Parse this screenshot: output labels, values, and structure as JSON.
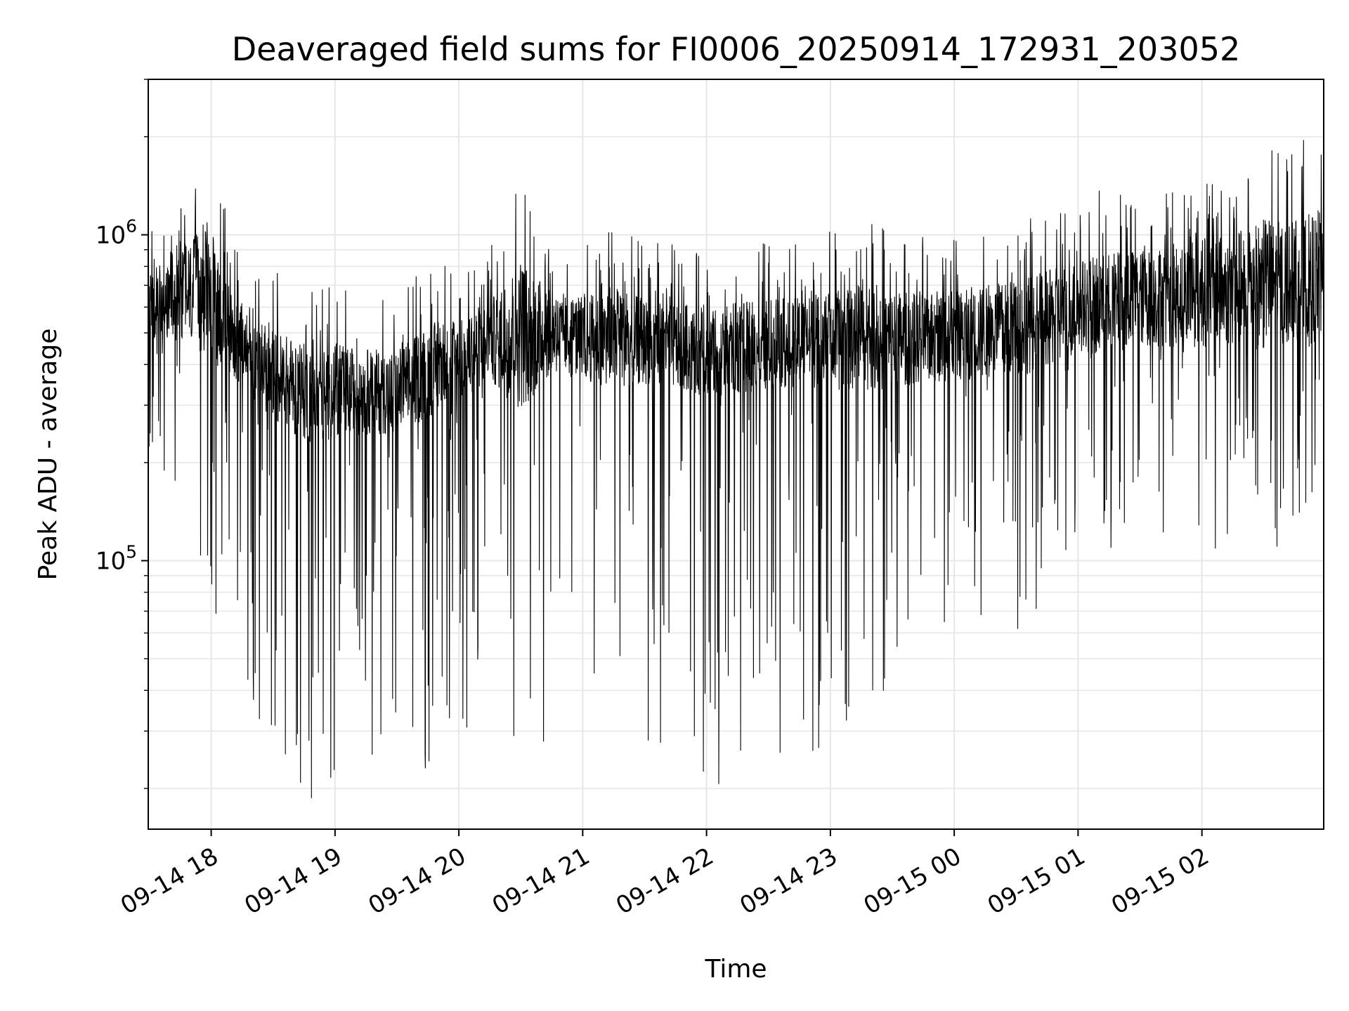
{
  "chart_data": {
    "type": "line",
    "title": "Deaveraged field sums for FI0006_20250914_172931_203052",
    "xlabel": "Time",
    "ylabel": "Peak ADU - average",
    "yscale": "log",
    "ylim": [
      15000,
      3000000
    ],
    "xlim": [
      "2025-09-14 17:29:31",
      "2025-09-15 02:59:00"
    ],
    "grid": true,
    "line_color": "#000000",
    "grid_color": "#e6e6e6",
    "x_ticks": [
      {
        "t": "2025-09-14 18:00",
        "label": "09-14 18"
      },
      {
        "t": "2025-09-14 19:00",
        "label": "09-14 19"
      },
      {
        "t": "2025-09-14 20:00",
        "label": "09-14 20"
      },
      {
        "t": "2025-09-14 21:00",
        "label": "09-14 21"
      },
      {
        "t": "2025-09-14 22:00",
        "label": "09-14 22"
      },
      {
        "t": "2025-09-14 23:00",
        "label": "09-14 23"
      },
      {
        "t": "2025-09-15 00:00",
        "label": "09-15 00"
      },
      {
        "t": "2025-09-15 01:00",
        "label": "09-15 01"
      },
      {
        "t": "2025-09-15 02:00",
        "label": "09-15 02"
      }
    ],
    "y_major_ticks": [
      {
        "value": 100000,
        "base": "10",
        "exp": "5"
      },
      {
        "value": 1000000,
        "base": "10",
        "exp": "6"
      }
    ],
    "series": [
      {
        "envelope": [
          {
            "x": "2025-09-14 17:30",
            "max": 1000000,
            "median": 600000,
            "min": 200000
          },
          {
            "x": "2025-09-14 17:45",
            "max": 1500000,
            "median": 680000,
            "min": 150000
          },
          {
            "x": "2025-09-14 18:00",
            "max": 1900000,
            "median": 650000,
            "min": 60000
          },
          {
            "x": "2025-09-14 18:10",
            "max": 1000000,
            "median": 500000,
            "min": 60000
          },
          {
            "x": "2025-09-14 18:20",
            "max": 800000,
            "median": 420000,
            "min": 32000
          },
          {
            "x": "2025-09-14 18:35",
            "max": 780000,
            "median": 350000,
            "min": 25000
          },
          {
            "x": "2025-09-14 18:50",
            "max": 700000,
            "median": 320000,
            "min": 17000
          },
          {
            "x": "2025-09-14 19:00",
            "max": 700000,
            "median": 330000,
            "min": 20000
          },
          {
            "x": "2025-09-14 19:15",
            "max": 660000,
            "median": 330000,
            "min": 22000
          },
          {
            "x": "2025-09-14 19:30",
            "max": 650000,
            "median": 330000,
            "min": 22000
          },
          {
            "x": "2025-09-14 19:45",
            "max": 820000,
            "median": 380000,
            "min": 20000
          },
          {
            "x": "2025-09-14 20:00",
            "max": 850000,
            "median": 420000,
            "min": 22000
          },
          {
            "x": "2025-09-14 20:15",
            "max": 900000,
            "median": 470000,
            "min": 25000
          },
          {
            "x": "2025-09-14 20:30",
            "max": 1750000,
            "median": 500000,
            "min": 22000
          },
          {
            "x": "2025-09-14 20:45",
            "max": 950000,
            "median": 500000,
            "min": 25000
          },
          {
            "x": "2025-09-14 21:00",
            "max": 960000,
            "median": 480000,
            "min": 28000
          },
          {
            "x": "2025-09-14 21:15",
            "max": 1050000,
            "median": 480000,
            "min": 28000
          },
          {
            "x": "2025-09-14 21:30",
            "max": 950000,
            "median": 470000,
            "min": 28000
          },
          {
            "x": "2025-09-14 21:45",
            "max": 950000,
            "median": 460000,
            "min": 27000
          },
          {
            "x": "2025-09-14 22:00",
            "max": 850000,
            "median": 430000,
            "min": 20000
          },
          {
            "x": "2025-09-14 22:15",
            "max": 950000,
            "median": 450000,
            "min": 18000
          },
          {
            "x": "2025-09-14 22:30",
            "max": 960000,
            "median": 460000,
            "min": 22000
          },
          {
            "x": "2025-09-14 22:45",
            "max": 960000,
            "median": 470000,
            "min": 23000
          },
          {
            "x": "2025-09-14 23:00",
            "max": 1050000,
            "median": 470000,
            "min": 27000
          },
          {
            "x": "2025-09-14 23:15",
            "max": 1100000,
            "median": 480000,
            "min": 35000
          },
          {
            "x": "2025-09-14 23:30",
            "max": 1050000,
            "median": 480000,
            "min": 40000
          },
          {
            "x": "2025-09-14 23:45",
            "max": 1000000,
            "median": 480000,
            "min": 47000
          },
          {
            "x": "2025-09-15 00:00",
            "max": 1000000,
            "median": 490000,
            "min": 50000
          },
          {
            "x": "2025-09-15 00:15",
            "max": 1050000,
            "median": 500000,
            "min": 50000
          },
          {
            "x": "2025-09-15 00:30",
            "max": 1150000,
            "median": 520000,
            "min": 55000
          },
          {
            "x": "2025-09-15 00:45",
            "max": 1200000,
            "median": 550000,
            "min": 80000
          },
          {
            "x": "2025-09-15 01:00",
            "max": 1300000,
            "median": 600000,
            "min": 100000
          },
          {
            "x": "2025-09-15 01:15",
            "max": 1400000,
            "median": 620000,
            "min": 100000
          },
          {
            "x": "2025-09-15 01:30",
            "max": 1400000,
            "median": 640000,
            "min": 110000
          },
          {
            "x": "2025-09-15 01:45",
            "max": 1500000,
            "median": 650000,
            "min": 120000
          },
          {
            "x": "2025-09-15 02:00",
            "max": 1550000,
            "median": 660000,
            "min": 90000
          },
          {
            "x": "2025-09-15 02:15",
            "max": 1700000,
            "median": 680000,
            "min": 120000
          },
          {
            "x": "2025-09-15 02:30",
            "max": 2000000,
            "median": 700000,
            "min": 95000
          },
          {
            "x": "2025-09-15 02:45",
            "max": 1900000,
            "median": 720000,
            "min": 130000
          },
          {
            "x": "2025-09-15 02:59",
            "max": 2300000,
            "median": 750000,
            "min": 180000
          }
        ]
      }
    ]
  }
}
